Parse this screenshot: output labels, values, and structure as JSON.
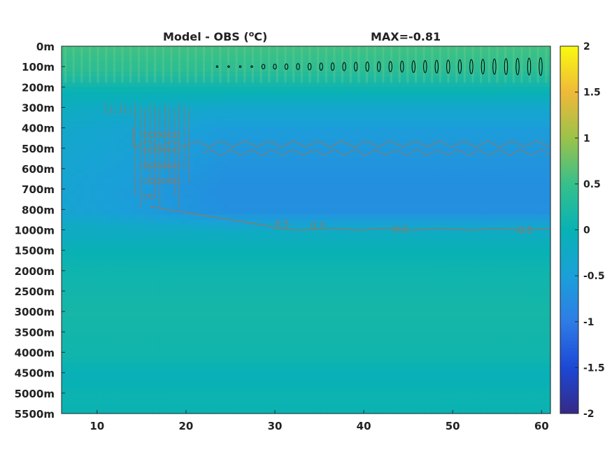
{
  "chart_data": {
    "type": "heatmap",
    "title": "Model - OBS (",
    "title_unit": "°C)",
    "title_superscript": "o",
    "title_unit_suffix": "C)",
    "max_label": "MAX=-0.81",
    "xlabel": "",
    "ylabel": "",
    "xlim": [
      6,
      61
    ],
    "x_ticks": [
      10,
      20,
      30,
      40,
      50,
      60
    ],
    "depth_levels": [
      "0m",
      "100m",
      "200m",
      "300m",
      "400m",
      "500m",
      "600m",
      "700m",
      "800m",
      "1000m",
      "1500m",
      "2000m",
      "2500m",
      "3000m",
      "3500m",
      "4000m",
      "4500m",
      "5000m",
      "5500m"
    ],
    "colorbar": {
      "range": [
        -2,
        2
      ],
      "ticks": [
        "2",
        "1.5",
        "1",
        "0.5",
        "0",
        "-0.5",
        "-1",
        "-1.5",
        "-2"
      ],
      "colormap": "parula"
    },
    "contour_labels": [
      "0.5",
      "0.5",
      "-0.5",
      "-0.5"
    ],
    "contour_levels": [
      -0.5
    ],
    "values_by_level": [
      0.55,
      0.4,
      0.05,
      -0.35,
      -0.55,
      -0.62,
      -0.7,
      -0.75,
      -0.72,
      -0.2,
      0.0,
      0.08,
      0.12,
      0.15,
      0.12,
      0.1,
      -0.05,
      0.05,
      0.0
    ],
    "colors": {
      "contour_gray": "#8a7a6a",
      "contour_black": "#000000"
    }
  }
}
